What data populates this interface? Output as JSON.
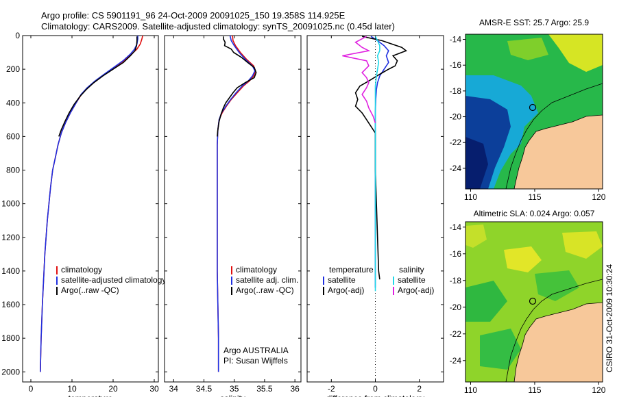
{
  "title_line1": "Argo profile: CS 5901191_96 24-Oct-2009 20091025_150 19.358S 114.925E",
  "title_line2": "Climatology: CARS2009. Satellite-adjusted climatology: synTS_20091025.nc (0.45d later)",
  "side_label": "CSIRO 31-Oct-2009 10:30:24",
  "colors": {
    "climatology": "#e01010",
    "satellite": "#1f2fe0",
    "argo": "#000000",
    "cyan": "#20d8e8",
    "magenta": "#e020e0",
    "land": "#f7c89a"
  },
  "chart_data": [
    {
      "type": "line",
      "name": "temperature-profile",
      "xlabel": "temperature",
      "ylabel": "",
      "xlim": [
        -2,
        31
      ],
      "ylim": [
        0,
        2060
      ],
      "y_reversed": true,
      "xticks": [
        0,
        10,
        20,
        30
      ],
      "yticks": [
        0,
        200,
        400,
        600,
        800,
        1000,
        1200,
        1400,
        1600,
        1800,
        2000
      ],
      "legend": [
        "climatology",
        "satellite-adjusted climatology",
        "Argo(..raw -QC)"
      ],
      "series": [
        {
          "name": "climatology",
          "color_key": "climatology",
          "points": [
            [
              27.2,
              0
            ],
            [
              27.0,
              20
            ],
            [
              26.6,
              50
            ],
            [
              25.8,
              80
            ],
            [
              24.5,
              110
            ],
            [
              22.6,
              150
            ],
            [
              20.3,
              190
            ],
            [
              18.0,
              230
            ],
            [
              15.8,
              270
            ],
            [
              13.8,
              310
            ],
            [
              12.3,
              350
            ],
            [
              11.0,
              400
            ],
            [
              9.6,
              460
            ],
            [
              8.4,
              520
            ],
            [
              7.4,
              580
            ],
            [
              6.6,
              650
            ],
            [
              6.0,
              720
            ],
            [
              5.3,
              800
            ],
            [
              4.8,
              900
            ],
            [
              4.4,
              1000
            ],
            [
              4.0,
              1100
            ],
            [
              3.7,
              1200
            ],
            [
              3.4,
              1300
            ],
            [
              3.2,
              1400
            ],
            [
              3.0,
              1500
            ],
            [
              2.8,
              1600
            ],
            [
              2.65,
              1700
            ],
            [
              2.5,
              1800
            ],
            [
              2.4,
              1900
            ],
            [
              2.3,
              2000
            ]
          ]
        },
        {
          "name": "satellite-adjusted climatology",
          "color_key": "satellite",
          "points": [
            [
              26.0,
              0
            ],
            [
              26.0,
              20
            ],
            [
              25.8,
              50
            ],
            [
              25.2,
              80
            ],
            [
              24.2,
              110
            ],
            [
              22.4,
              150
            ],
            [
              20.1,
              190
            ],
            [
              17.8,
              230
            ],
            [
              15.6,
              270
            ],
            [
              13.7,
              310
            ],
            [
              12.2,
              350
            ],
            [
              11.0,
              400
            ],
            [
              9.6,
              460
            ],
            [
              8.4,
              520
            ],
            [
              7.4,
              580
            ],
            [
              6.6,
              650
            ],
            [
              6.0,
              720
            ],
            [
              5.3,
              800
            ],
            [
              4.8,
              900
            ],
            [
              4.4,
              1000
            ],
            [
              4.0,
              1100
            ],
            [
              3.7,
              1200
            ],
            [
              3.4,
              1300
            ],
            [
              3.2,
              1400
            ],
            [
              3.0,
              1500
            ],
            [
              2.8,
              1600
            ],
            [
              2.65,
              1700
            ],
            [
              2.5,
              1800
            ],
            [
              2.4,
              1900
            ],
            [
              2.3,
              2000
            ]
          ]
        },
        {
          "name": "Argo(..raw -QC)",
          "color_key": "argo",
          "points": [
            [
              25.8,
              5
            ],
            [
              25.8,
              30
            ],
            [
              25.7,
              60
            ],
            [
              25.3,
              90
            ],
            [
              24.2,
              120
            ],
            [
              22.5,
              160
            ],
            [
              20.0,
              200
            ],
            [
              17.5,
              240
            ],
            [
              15.3,
              280
            ],
            [
              13.5,
              320
            ],
            [
              12.0,
              360
            ],
            [
              10.5,
              410
            ],
            [
              9.3,
              460
            ],
            [
              8.3,
              510
            ],
            [
              7.4,
              560
            ],
            [
              6.8,
              600
            ]
          ]
        }
      ]
    },
    {
      "type": "line",
      "name": "salinity-profile",
      "xlabel": "salinity",
      "ylabel": "",
      "xlim": [
        33.85,
        36.1
      ],
      "ylim": [
        0,
        2060
      ],
      "y_reversed": true,
      "xticks": [
        34,
        34.5,
        35,
        35.5,
        36
      ],
      "yticks": [
        0,
        200,
        400,
        600,
        800,
        1000,
        1200,
        1400,
        1600,
        1800,
        2000
      ],
      "legend": [
        "climatology",
        "satellite adj. clim.",
        "Argo(..raw -QC)"
      ],
      "annotations": [
        "Argo AUSTRALIA",
        "PI: Susan Wijffels"
      ],
      "series": [
        {
          "name": "climatology",
          "color_key": "climatology",
          "points": [
            [
              34.97,
              0
            ],
            [
              34.98,
              30
            ],
            [
              35.02,
              60
            ],
            [
              35.1,
              100
            ],
            [
              35.2,
              140
            ],
            [
              35.32,
              180
            ],
            [
              35.35,
              210
            ],
            [
              35.32,
              240
            ],
            [
              35.25,
              270
            ],
            [
              35.15,
              300
            ],
            [
              35.05,
              340
            ],
            [
              34.95,
              380
            ],
            [
              34.87,
              420
            ],
            [
              34.8,
              460
            ],
            [
              34.75,
              500
            ],
            [
              34.73,
              560
            ],
            [
              34.72,
              650
            ],
            [
              34.72,
              800
            ],
            [
              34.72,
              1000
            ],
            [
              34.72,
              1200
            ],
            [
              34.72,
              1400
            ],
            [
              34.73,
              1600
            ],
            [
              34.74,
              1800
            ],
            [
              34.74,
              2000
            ]
          ]
        },
        {
          "name": "satellite adj. clim.",
          "color_key": "satellite",
          "points": [
            [
              34.93,
              0
            ],
            [
              34.95,
              30
            ],
            [
              35.0,
              60
            ],
            [
              35.08,
              100
            ],
            [
              35.18,
              140
            ],
            [
              35.3,
              180
            ],
            [
              35.34,
              210
            ],
            [
              35.3,
              240
            ],
            [
              35.23,
              270
            ],
            [
              35.13,
              300
            ],
            [
              35.03,
              340
            ],
            [
              34.94,
              380
            ],
            [
              34.86,
              420
            ],
            [
              34.79,
              460
            ],
            [
              34.75,
              500
            ],
            [
              34.73,
              560
            ],
            [
              34.72,
              650
            ],
            [
              34.72,
              800
            ],
            [
              34.72,
              1000
            ],
            [
              34.72,
              1200
            ],
            [
              34.72,
              1400
            ],
            [
              34.73,
              1600
            ],
            [
              34.74,
              1800
            ],
            [
              34.74,
              2000
            ]
          ]
        },
        {
          "name": "Argo(..raw -QC)",
          "color_key": "argo",
          "points": [
            [
              34.82,
              5
            ],
            [
              34.82,
              20
            ],
            [
              34.85,
              40
            ],
            [
              34.84,
              60
            ],
            [
              34.95,
              80
            ],
            [
              34.99,
              100
            ],
            [
              35.12,
              130
            ],
            [
              35.22,
              160
            ],
            [
              35.33,
              190
            ],
            [
              35.36,
              220
            ],
            [
              35.33,
              250
            ],
            [
              35.18,
              280
            ],
            [
              35.05,
              310
            ],
            [
              34.98,
              340
            ],
            [
              34.92,
              370
            ],
            [
              34.86,
              400
            ],
            [
              34.82,
              430
            ],
            [
              34.78,
              470
            ],
            [
              34.75,
              510
            ],
            [
              34.73,
              560
            ],
            [
              34.72,
              600
            ]
          ]
        }
      ]
    },
    {
      "type": "line",
      "name": "difference-profile",
      "xlabel": "difference from climatology",
      "ylabel": "",
      "xlim": [
        -3.1,
        3.1
      ],
      "ylim": [
        0,
        2060
      ],
      "y_reversed": true,
      "xticks": [
        -2,
        0,
        2
      ],
      "yticks": [
        0,
        200,
        400,
        600,
        800,
        1000,
        1200,
        1400,
        1600,
        1800,
        2000
      ],
      "legend": [
        "temperature",
        "satellite",
        "Argo(-adj)",
        "salinity",
        "satellite",
        "Argo(-adj)"
      ],
      "series": [
        {
          "name": "temperature satellite",
          "color_key": "satellite",
          "points": [
            [
              -0.2,
              5
            ],
            [
              0.1,
              30
            ],
            [
              0.4,
              60
            ],
            [
              0.6,
              90
            ],
            [
              0.5,
              120
            ],
            [
              0.6,
              160
            ],
            [
              0.4,
              200
            ],
            [
              0.2,
              240
            ],
            [
              0.1,
              280
            ],
            [
              0.05,
              320
            ],
            [
              0.02,
              380
            ],
            [
              0.0,
              450
            ],
            [
              0.0,
              600
            ],
            [
              0.0,
              800
            ],
            [
              0.0,
              1000
            ],
            [
              0.0,
              1200
            ],
            [
              0.0,
              1400
            ],
            [
              0.0,
              1500
            ]
          ]
        },
        {
          "name": "temperature Argo(-adj)",
          "color_key": "argo",
          "points": [
            [
              -0.6,
              5
            ],
            [
              0.3,
              30
            ],
            [
              1.2,
              70
            ],
            [
              1.4,
              90
            ],
            [
              0.8,
              120
            ],
            [
              1.0,
              150
            ],
            [
              0.9,
              180
            ],
            [
              0.6,
              200
            ],
            [
              0.2,
              230
            ],
            [
              -0.3,
              270
            ],
            [
              -0.7,
              300
            ],
            [
              -0.9,
              340
            ],
            [
              -0.8,
              380
            ],
            [
              -0.9,
              420
            ],
            [
              -0.6,
              460
            ],
            [
              -0.4,
              500
            ],
            [
              -0.2,
              540
            ],
            [
              0.0,
              580
            ],
            [
              0.0,
              800
            ],
            [
              0.05,
              1000
            ],
            [
              0.1,
              1200
            ],
            [
              0.15,
              1400
            ],
            [
              0.2,
              1450
            ]
          ]
        },
        {
          "name": "salinity satellite",
          "color_key": "cyan",
          "points": [
            [
              0.0,
              5
            ],
            [
              0.1,
              30
            ],
            [
              0.2,
              60
            ],
            [
              0.2,
              90
            ],
            [
              0.1,
              120
            ],
            [
              0.15,
              160
            ],
            [
              0.1,
              200
            ],
            [
              0.05,
              240
            ],
            [
              0.0,
              300
            ],
            [
              0.0,
              400
            ],
            [
              0.0,
              600
            ],
            [
              0.0,
              800
            ],
            [
              0.0,
              1000
            ],
            [
              0.0,
              1200
            ],
            [
              0.0,
              1400
            ],
            [
              0.0,
              1520
            ]
          ]
        },
        {
          "name": "salinity Argo(-adj)",
          "color_key": "magenta",
          "points": [
            [
              -0.4,
              5
            ],
            [
              -0.9,
              40
            ],
            [
              -0.6,
              70
            ],
            [
              -0.3,
              90
            ],
            [
              -1.5,
              120
            ],
            [
              -0.4,
              150
            ],
            [
              -0.3,
              180
            ],
            [
              -0.6,
              220
            ],
            [
              -0.4,
              250
            ],
            [
              -0.3,
              280
            ],
            [
              -0.4,
              310
            ],
            [
              -0.6,
              350
            ],
            [
              -0.4,
              390
            ],
            [
              -0.3,
              430
            ],
            [
              -0.1,
              480
            ],
            [
              0.0,
              520
            ]
          ]
        }
      ]
    },
    {
      "type": "heatmap",
      "name": "sst-map",
      "title": "AMSR-E SST: 25.7  Argo: 25.9",
      "xlim": [
        109.6,
        120.3
      ],
      "ylim": [
        -25.6,
        -13.6
      ],
      "xticks": [
        110,
        115,
        120
      ],
      "yticks": [
        -14,
        -16,
        -18,
        -20,
        -22,
        -24
      ],
      "marker": [
        114.925,
        -19.358
      ]
    },
    {
      "type": "heatmap",
      "name": "sla-map",
      "title": "Altimetric SLA: 0.024  Argo: 0.057",
      "xlim": [
        109.6,
        120.3
      ],
      "ylim": [
        -25.6,
        -13.6
      ],
      "xticks": [
        110,
        115,
        120
      ],
      "yticks": [
        -14,
        -16,
        -18,
        -20,
        -22,
        -24
      ],
      "marker": [
        114.925,
        -19.358
      ]
    }
  ]
}
